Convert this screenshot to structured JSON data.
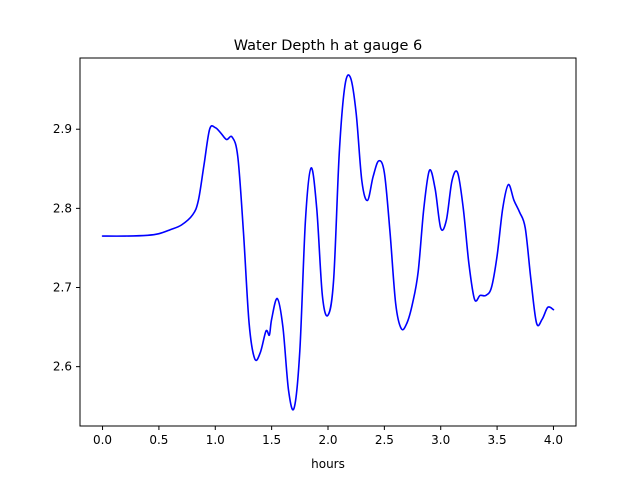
{
  "chart_data": {
    "type": "line",
    "title": "Water Depth h at gauge 6",
    "xlabel": "hours",
    "ylabel": "",
    "xlim": [
      -0.2,
      4.2
    ],
    "ylim": [
      2.525,
      2.99
    ],
    "grid": false,
    "x_ticks": [
      0.0,
      0.5,
      1.0,
      1.5,
      2.0,
      2.5,
      3.0,
      3.5,
      4.0
    ],
    "x_tick_labels": [
      "0.0",
      "0.5",
      "1.0",
      "1.5",
      "2.0",
      "2.5",
      "3.0",
      "3.5",
      "4.0"
    ],
    "y_ticks": [
      2.6,
      2.7,
      2.8,
      2.9
    ],
    "y_tick_labels": [
      "2.6",
      "2.7",
      "2.8",
      "2.9"
    ],
    "series": [
      {
        "color": "#0000ff",
        "x": [
          0.0,
          0.2,
          0.4,
          0.5,
          0.6,
          0.7,
          0.8,
          0.85,
          0.9,
          0.95,
          1.0,
          1.05,
          1.1,
          1.15,
          1.2,
          1.25,
          1.3,
          1.35,
          1.4,
          1.45,
          1.48,
          1.5,
          1.55,
          1.6,
          1.65,
          1.7,
          1.75,
          1.8,
          1.85,
          1.9,
          1.95,
          2.0,
          2.05,
          2.1,
          2.15,
          2.2,
          2.25,
          2.3,
          2.35,
          2.4,
          2.45,
          2.5,
          2.55,
          2.6,
          2.65,
          2.7,
          2.75,
          2.8,
          2.85,
          2.9,
          2.95,
          3.0,
          3.05,
          3.1,
          3.15,
          3.2,
          3.25,
          3.3,
          3.35,
          3.4,
          3.45,
          3.5,
          3.55,
          3.6,
          3.65,
          3.7,
          3.75,
          3.8,
          3.85,
          3.9,
          3.95,
          4.0
        ],
        "y": [
          2.765,
          2.765,
          2.766,
          2.768,
          2.773,
          2.779,
          2.792,
          2.81,
          2.855,
          2.9,
          2.902,
          2.895,
          2.887,
          2.89,
          2.865,
          2.77,
          2.655,
          2.61,
          2.618,
          2.645,
          2.64,
          2.66,
          2.686,
          2.65,
          2.57,
          2.548,
          2.62,
          2.785,
          2.851,
          2.8,
          2.69,
          2.665,
          2.71,
          2.87,
          2.955,
          2.965,
          2.92,
          2.835,
          2.81,
          2.84,
          2.86,
          2.845,
          2.77,
          2.68,
          2.648,
          2.655,
          2.68,
          2.72,
          2.8,
          2.848,
          2.825,
          2.775,
          2.785,
          2.835,
          2.845,
          2.8,
          2.73,
          2.685,
          2.69,
          2.69,
          2.7,
          2.74,
          2.8,
          2.83,
          2.81,
          2.795,
          2.775,
          2.71,
          2.655,
          2.66,
          2.675,
          2.672
        ]
      }
    ]
  }
}
